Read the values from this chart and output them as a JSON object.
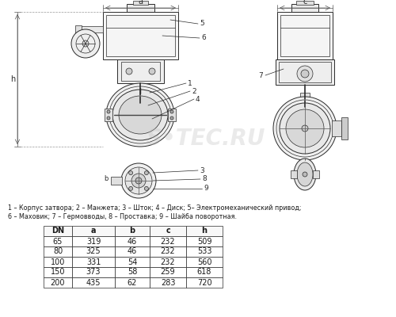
{
  "legend_line1": "1 – Корпус затвора; 2 – Манжета; 3 – Шток; 4 – Диск; 5– Электромеханический привод;",
  "legend_line2": "6 – Маховик; 7 – Гермовводы, 8 – Проставка; 9 – Шайба поворотная.",
  "table_headers": [
    "DN",
    "a",
    "b",
    "c",
    "h"
  ],
  "table_data": [
    [
      65,
      319,
      46,
      232,
      509
    ],
    [
      80,
      325,
      46,
      232,
      533
    ],
    [
      100,
      331,
      54,
      232,
      560
    ],
    [
      150,
      373,
      58,
      259,
      618
    ],
    [
      200,
      435,
      62,
      283,
      720
    ]
  ],
  "bg_color": "#ffffff",
  "text_color": "#1a1a1a",
  "watermark": "S•TEC.RU",
  "fig_width": 5.0,
  "fig_height": 4.0,
  "dpi": 100
}
